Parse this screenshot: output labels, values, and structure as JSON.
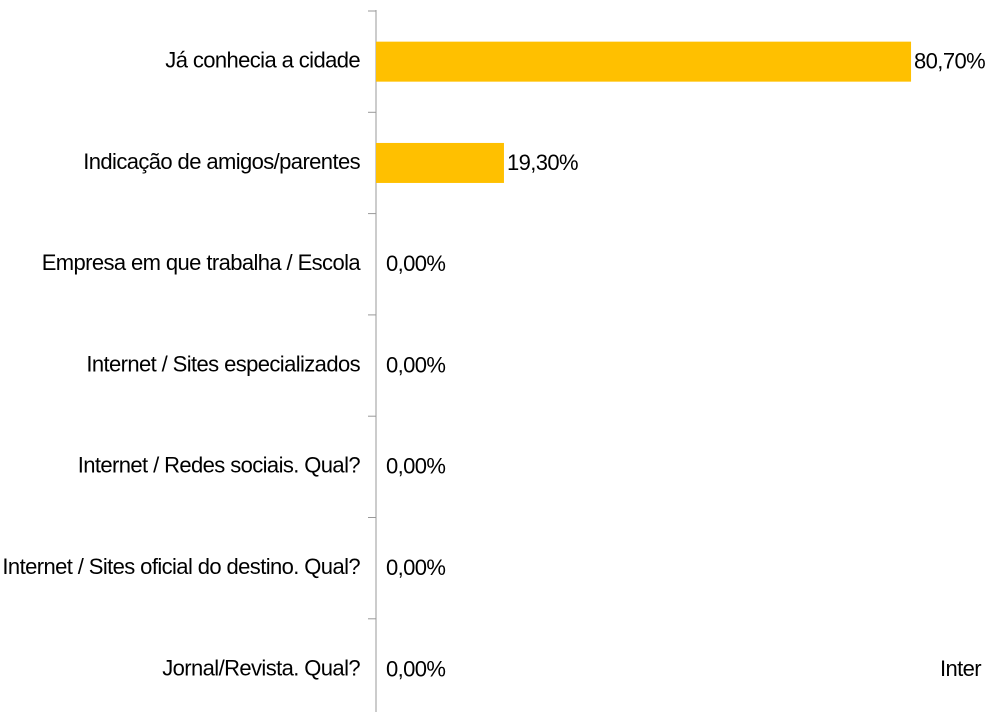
{
  "chart_data": {
    "type": "bar",
    "orientation": "horizontal",
    "categories": [
      "Já conhecia a cidade",
      "Indicação de amigos/parentes",
      "Empresa em que trabalha / Escola",
      "Internet / Sites especializados",
      "Internet / Redes sociais. Qual?",
      "Internet / Sites oficial do destino. Qual?",
      "Jornal/Revista. Qual?"
    ],
    "values": [
      80.7,
      19.3,
      0,
      0,
      0,
      0,
      0
    ],
    "value_labels": [
      "80,70%",
      "19,30%",
      "0,00%",
      "0,00%",
      "0,00%",
      "0,00%",
      "0,00%"
    ],
    "color": "#ffc000",
    "xlim": [
      0,
      100
    ],
    "annotations": [
      "Inter"
    ]
  }
}
